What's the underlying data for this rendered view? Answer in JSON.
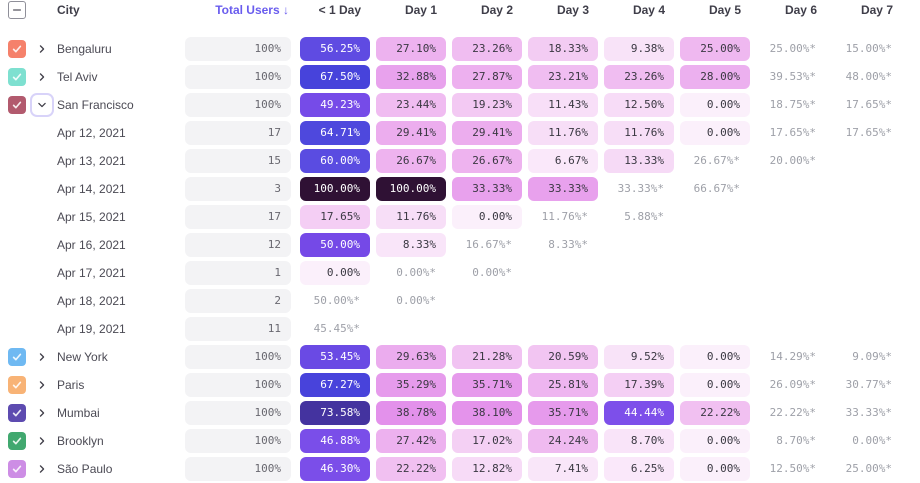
{
  "header": {
    "columns": [
      "City",
      "Total Users ↓",
      "< 1 Day",
      "Day 1",
      "Day 2",
      "Day 3",
      "Day 4",
      "Day 5",
      "Day 6",
      "Day 7"
    ],
    "select_all_state": "indeterminate",
    "sorted_by": "Total Users"
  },
  "colors": {
    "sort_accent": "#695CEE",
    "header_text": "#3F3E49",
    "row_label_text": "#4B4A54",
    "pill_bg": "#F3F3F5",
    "pill_text": "#68676F",
    "cell_text_dark": "#3A3842",
    "cell_text_white": "#FFFFFF",
    "estimate_text": "#9EA0A8",
    "expanded_focus_ring": "#D8D3F9"
  },
  "rows": [
    {
      "type": "city",
      "label": "Bengaluru",
      "checkbox_color": "#F5816B",
      "expanded": false,
      "users": "100%",
      "cells": [
        {
          "t": "56.25%",
          "bg": "#5F4BE2",
          "fg": "white"
        },
        {
          "t": "27.10%",
          "bg": "#EDB2EF",
          "fg": "dark"
        },
        {
          "t": "23.26%",
          "bg": "#F0BDF1",
          "fg": "dark"
        },
        {
          "t": "18.33%",
          "bg": "#F3CCF3",
          "fg": "dark"
        },
        {
          "t": "9.38%",
          "bg": "#F8E3F8",
          "fg": "dark"
        },
        {
          "t": "25.00%",
          "bg": "#EFB8F0",
          "fg": "dark"
        },
        {
          "t": "25.00%*",
          "fg": "gray"
        },
        {
          "t": "15.00%*",
          "fg": "gray"
        }
      ]
    },
    {
      "type": "city",
      "label": "Tel Aviv",
      "checkbox_color": "#7EE0D0",
      "expanded": false,
      "users": "100%",
      "cells": [
        {
          "t": "67.50%",
          "bg": "#4743DB",
          "fg": "white"
        },
        {
          "t": "32.88%",
          "bg": "#E8A2ED",
          "fg": "dark"
        },
        {
          "t": "27.87%",
          "bg": "#EDB0EF",
          "fg": "dark"
        },
        {
          "t": "23.21%",
          "bg": "#F0BDF1",
          "fg": "dark"
        },
        {
          "t": "23.26%",
          "bg": "#F0BDF1",
          "fg": "dark"
        },
        {
          "t": "28.00%",
          "bg": "#ECB0EF",
          "fg": "dark"
        },
        {
          "t": "39.53%*",
          "fg": "gray"
        },
        {
          "t": "48.00%*",
          "fg": "gray"
        }
      ]
    },
    {
      "type": "city",
      "label": "San Francisco",
      "checkbox_color": "#B25A6E",
      "expanded": true,
      "users": "100%",
      "cells": [
        {
          "t": "49.23%",
          "bg": "#764BE8",
          "fg": "white"
        },
        {
          "t": "23.44%",
          "bg": "#F0BCF1",
          "fg": "dark"
        },
        {
          "t": "19.23%",
          "bg": "#F3C9F3",
          "fg": "dark"
        },
        {
          "t": "11.43%",
          "bg": "#F8DFF8",
          "fg": "dark"
        },
        {
          "t": "12.50%",
          "bg": "#F7DCF7",
          "fg": "dark"
        },
        {
          "t": "0.00%",
          "bg": "#FBF0FB",
          "fg": "dark"
        },
        {
          "t": "18.75%*",
          "fg": "gray"
        },
        {
          "t": "17.65%*",
          "fg": "gray"
        }
      ]
    },
    {
      "type": "date",
      "label": "Apr 12, 2021",
      "users": "17",
      "cells": [
        {
          "t": "64.71%",
          "bg": "#4E48DD",
          "fg": "white"
        },
        {
          "t": "29.41%",
          "bg": "#ECADEE",
          "fg": "dark"
        },
        {
          "t": "29.41%",
          "bg": "#ECADEE",
          "fg": "dark"
        },
        {
          "t": "11.76%",
          "bg": "#F7DEF7",
          "fg": "dark"
        },
        {
          "t": "11.76%",
          "bg": "#F7DEF7",
          "fg": "dark"
        },
        {
          "t": "0.00%",
          "bg": "#FBF0FB",
          "fg": "dark"
        },
        {
          "t": "17.65%*",
          "fg": "gray"
        },
        {
          "t": "17.65%*",
          "fg": "gray"
        }
      ]
    },
    {
      "type": "date",
      "label": "Apr 13, 2021",
      "users": "15",
      "cells": [
        {
          "t": "60.00%",
          "bg": "#5A4CE1",
          "fg": "white"
        },
        {
          "t": "26.67%",
          "bg": "#EEB3EF",
          "fg": "dark"
        },
        {
          "t": "26.67%",
          "bg": "#EEB3EF",
          "fg": "dark"
        },
        {
          "t": "6.67%",
          "bg": "#FAE8FA",
          "fg": "dark"
        },
        {
          "t": "13.33%",
          "bg": "#F6DAF6",
          "fg": "dark"
        },
        {
          "t": "26.67%*",
          "fg": "gray"
        },
        {
          "t": "20.00%*",
          "fg": "gray"
        },
        null
      ]
    },
    {
      "type": "date",
      "label": "Apr 14, 2021",
      "users": "3",
      "cells": [
        {
          "t": "100.00%",
          "bg": "#2F1134",
          "fg": "white"
        },
        {
          "t": "100.00%",
          "bg": "#2F1134",
          "fg": "white"
        },
        {
          "t": "33.33%",
          "bg": "#E8A1ED",
          "fg": "dark"
        },
        {
          "t": "33.33%",
          "bg": "#E8A1ED",
          "fg": "dark"
        },
        {
          "t": "33.33%*",
          "fg": "gray"
        },
        {
          "t": "66.67%*",
          "fg": "gray"
        },
        null,
        null
      ]
    },
    {
      "type": "date",
      "label": "Apr 15, 2021",
      "users": "17",
      "cells": [
        {
          "t": "17.65%",
          "bg": "#F4CEF4",
          "fg": "dark"
        },
        {
          "t": "11.76%",
          "bg": "#F7DEF7",
          "fg": "dark"
        },
        {
          "t": "0.00%",
          "bg": "#FBF0FB",
          "fg": "dark"
        },
        {
          "t": "11.76%*",
          "fg": "gray"
        },
        {
          "t": "5.88%*",
          "fg": "gray"
        },
        null,
        null,
        null
      ]
    },
    {
      "type": "date",
      "label": "Apr 16, 2021",
      "users": "12",
      "cells": [
        {
          "t": "50.00%",
          "bg": "#7549E7",
          "fg": "white"
        },
        {
          "t": "8.33%",
          "bg": "#F9E5F9",
          "fg": "dark"
        },
        {
          "t": "16.67%*",
          "fg": "gray"
        },
        {
          "t": "8.33%*",
          "fg": "gray"
        },
        null,
        null,
        null,
        null
      ]
    },
    {
      "type": "date",
      "label": "Apr 17, 2021",
      "users": "1",
      "cells": [
        {
          "t": "0.00%",
          "bg": "#FBF0FB",
          "fg": "dark"
        },
        {
          "t": "0.00%*",
          "fg": "gray"
        },
        {
          "t": "0.00%*",
          "fg": "gray"
        },
        null,
        null,
        null,
        null,
        null
      ]
    },
    {
      "type": "date",
      "label": "Apr 18, 2021",
      "users": "2",
      "cells": [
        {
          "t": "50.00%*",
          "fg": "gray"
        },
        {
          "t": "0.00%*",
          "fg": "gray"
        },
        null,
        null,
        null,
        null,
        null,
        null
      ]
    },
    {
      "type": "date",
      "label": "Apr 19, 2021",
      "users": "11",
      "cells": [
        {
          "t": "45.45%*",
          "fg": "gray"
        },
        null,
        null,
        null,
        null,
        null,
        null,
        null
      ]
    },
    {
      "type": "city",
      "label": "New York",
      "checkbox_color": "#6FB9F2",
      "expanded": false,
      "users": "100%",
      "cells": [
        {
          "t": "53.45%",
          "bg": "#6A4AE4",
          "fg": "white"
        },
        {
          "t": "29.63%",
          "bg": "#EBACEE",
          "fg": "dark"
        },
        {
          "t": "21.28%",
          "bg": "#F1C3F2",
          "fg": "dark"
        },
        {
          "t": "20.59%",
          "bg": "#F2C5F2",
          "fg": "dark"
        },
        {
          "t": "9.52%",
          "bg": "#F8E3F8",
          "fg": "dark"
        },
        {
          "t": "0.00%",
          "bg": "#FBF0FB",
          "fg": "dark"
        },
        {
          "t": "14.29%*",
          "fg": "gray"
        },
        {
          "t": "9.09%*",
          "fg": "gray"
        }
      ]
    },
    {
      "type": "city",
      "label": "Paris",
      "checkbox_color": "#F8B376",
      "expanded": false,
      "users": "100%",
      "cells": [
        {
          "t": "67.27%",
          "bg": "#4843DB",
          "fg": "white"
        },
        {
          "t": "35.29%",
          "bg": "#E69BEC",
          "fg": "dark"
        },
        {
          "t": "35.71%",
          "bg": "#E69AEC",
          "fg": "dark"
        },
        {
          "t": "25.81%",
          "bg": "#EEB5F0",
          "fg": "dark"
        },
        {
          "t": "17.39%",
          "bg": "#F4CFF4",
          "fg": "dark"
        },
        {
          "t": "0.00%",
          "bg": "#FBF0FB",
          "fg": "dark"
        },
        {
          "t": "26.09%*",
          "fg": "gray"
        },
        {
          "t": "30.77%*",
          "fg": "gray"
        }
      ]
    },
    {
      "type": "city",
      "label": "Mumbai",
      "checkbox_color": "#5D4BB0",
      "expanded": false,
      "users": "100%",
      "cells": [
        {
          "t": "73.58%",
          "bg": "#44339F",
          "fg": "white"
        },
        {
          "t": "38.78%",
          "bg": "#E391EB",
          "fg": "dark"
        },
        {
          "t": "38.10%",
          "bg": "#E493EB",
          "fg": "dark"
        },
        {
          "t": "35.71%",
          "bg": "#E69AEC",
          "fg": "dark"
        },
        {
          "t": "44.44%",
          "bg": "#7D4FEA",
          "fg": "white"
        },
        {
          "t": "22.22%",
          "bg": "#F1C0F1",
          "fg": "dark"
        },
        {
          "t": "22.22%*",
          "fg": "gray"
        },
        {
          "t": "33.33%*",
          "fg": "gray"
        }
      ]
    },
    {
      "type": "city",
      "label": "Brooklyn",
      "checkbox_color": "#41A86F",
      "expanded": false,
      "users": "100%",
      "cells": [
        {
          "t": "46.88%",
          "bg": "#7A4EE9",
          "fg": "white"
        },
        {
          "t": "27.42%",
          "bg": "#EDB1EF",
          "fg": "dark"
        },
        {
          "t": "17.02%",
          "bg": "#F4D0F4",
          "fg": "dark"
        },
        {
          "t": "24.24%",
          "bg": "#EFBAF0",
          "fg": "dark"
        },
        {
          "t": "8.70%",
          "bg": "#F9E4F9",
          "fg": "dark"
        },
        {
          "t": "0.00%",
          "bg": "#FBF0FB",
          "fg": "dark"
        },
        {
          "t": "8.70%*",
          "fg": "gray"
        },
        {
          "t": "0.00%*",
          "fg": "gray"
        }
      ]
    },
    {
      "type": "city",
      "label": "São Paulo",
      "checkbox_color": "#CD8DE5",
      "expanded": false,
      "users": "100%",
      "cells": [
        {
          "t": "46.30%",
          "bg": "#7B4EE9",
          "fg": "white"
        },
        {
          "t": "22.22%",
          "bg": "#F1C0F1",
          "fg": "dark"
        },
        {
          "t": "12.82%",
          "bg": "#F7DBF7",
          "fg": "dark"
        },
        {
          "t": "7.41%",
          "bg": "#F9E6F9",
          "fg": "dark"
        },
        {
          "t": "6.25%",
          "bg": "#FAE8FA",
          "fg": "dark"
        },
        {
          "t": "0.00%",
          "bg": "#FBF0FB",
          "fg": "dark"
        },
        {
          "t": "12.50%*",
          "fg": "gray"
        },
        {
          "t": "25.00%*",
          "fg": "gray"
        }
      ]
    }
  ]
}
